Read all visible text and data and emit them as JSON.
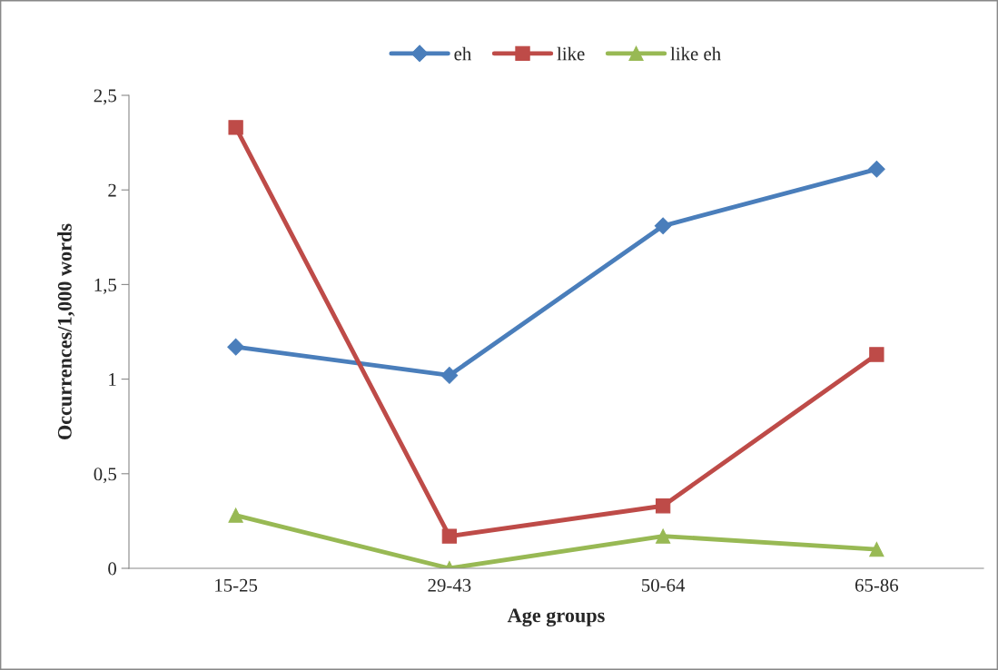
{
  "chart_data": {
    "type": "line",
    "xlabel": "Age groups",
    "ylabel": "Occurrences/1,000 words",
    "categories": [
      "15-25",
      "29-43",
      "50-64",
      "65-86"
    ],
    "series": [
      {
        "name": "eh",
        "color": "#4a7ebb",
        "marker": "diamond",
        "values": [
          1.17,
          1.02,
          1.81,
          2.11
        ]
      },
      {
        "name": "like",
        "color": "#be4b48",
        "marker": "square",
        "values": [
          2.33,
          0.17,
          0.33,
          1.13
        ]
      },
      {
        "name": "like eh",
        "color": "#98b954",
        "marker": "triangle",
        "values": [
          0.28,
          0,
          0.17,
          0.1
        ]
      }
    ],
    "ylim": [
      0,
      2.5
    ],
    "yticks": [
      0,
      {
        "value": 0.5,
        "label": "0,5"
      },
      1,
      {
        "value": 1.5,
        "label": "1,5"
      },
      2,
      {
        "value": 2.5,
        "label": "2,5"
      }
    ],
    "grid": false,
    "legend": "top",
    "line_style": "solid"
  }
}
